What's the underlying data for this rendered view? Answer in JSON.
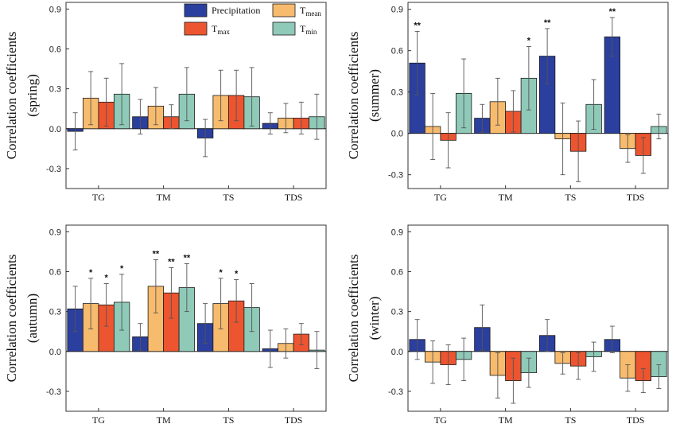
{
  "colors": {
    "Precipitation": "#2b3f9e",
    "T_mean": "#f7bb6e",
    "T_max": "#ec5530",
    "T_min": "#8fc9b8"
  },
  "legend": {
    "items": [
      {
        "key": "Precipitation",
        "base": "Precipitation",
        "sub": ""
      },
      {
        "key": "T_mean",
        "base": "T",
        "sub": "mean"
      },
      {
        "key": "T_max",
        "base": "T",
        "sub": "max"
      },
      {
        "key": "T_min",
        "base": "T",
        "sub": "min"
      }
    ]
  },
  "chart_data": [
    {
      "type": "bar",
      "ylabel_main": "Correlation coefficients",
      "ylabel_season": "(spring)",
      "ylim": [
        -0.45,
        0.95
      ],
      "yticks": [
        -0.3,
        0.0,
        0.3,
        0.6,
        0.9
      ],
      "ytick_labels": [
        "-0.3",
        "0.0",
        "0.3",
        "0.6",
        "0.9"
      ],
      "categories": [
        "TG",
        "TM",
        "TS",
        "TDS"
      ],
      "series": [
        {
          "name": "Precipitation",
          "values": [
            -0.02,
            0.09,
            -0.07,
            0.04
          ],
          "err": [
            0.14,
            0.13,
            0.14,
            0.08
          ],
          "stars": [
            "",
            "",
            "",
            ""
          ]
        },
        {
          "name": "T_mean",
          "values": [
            0.23,
            0.17,
            0.25,
            0.08
          ],
          "err": [
            0.2,
            0.14,
            0.19,
            0.11
          ],
          "stars": [
            "",
            "",
            "",
            ""
          ]
        },
        {
          "name": "T_max",
          "values": [
            0.2,
            0.09,
            0.25,
            0.08
          ],
          "err": [
            0.18,
            0.09,
            0.19,
            0.12
          ],
          "stars": [
            "",
            "",
            "",
            ""
          ]
        },
        {
          "name": "T_min",
          "values": [
            0.26,
            0.26,
            0.24,
            0.09
          ],
          "err": [
            0.23,
            0.2,
            0.22,
            0.17
          ],
          "stars": [
            "",
            "",
            "",
            ""
          ]
        }
      ]
    },
    {
      "type": "bar",
      "ylabel_main": "Correlation coefficients",
      "ylabel_season": "(summer)",
      "ylim": [
        -0.4,
        0.95
      ],
      "yticks": [
        -0.3,
        0.0,
        0.3,
        0.6,
        0.9
      ],
      "ytick_labels": [
        "-0.3",
        "0.0",
        "0.3",
        "0.6",
        "0.9"
      ],
      "categories": [
        "TG",
        "TM",
        "TS",
        "TDS"
      ],
      "series": [
        {
          "name": "Precipitation",
          "values": [
            0.51,
            0.11,
            0.56,
            0.7
          ],
          "err": [
            0.23,
            0.1,
            0.2,
            0.14
          ],
          "stars": [
            "**",
            "",
            "**",
            "**"
          ]
        },
        {
          "name": "T_mean",
          "values": [
            0.05,
            0.23,
            -0.04,
            -0.11
          ],
          "err": [
            0.24,
            0.17,
            0.26,
            0.1
          ],
          "stars": [
            "",
            "",
            "",
            ""
          ]
        },
        {
          "name": "T_max",
          "values": [
            -0.05,
            0.16,
            -0.13,
            -0.16
          ],
          "err": [
            0.2,
            0.15,
            0.22,
            0.13
          ],
          "stars": [
            "",
            "",
            "",
            ""
          ]
        },
        {
          "name": "T_min",
          "values": [
            0.29,
            0.4,
            0.21,
            0.05
          ],
          "err": [
            0.25,
            0.23,
            0.18,
            0.09
          ],
          "stars": [
            "",
            "*",
            "",
            ""
          ]
        }
      ]
    },
    {
      "type": "bar",
      "ylabel_main": "Correlation coefficients",
      "ylabel_season": "(autumn)",
      "ylim": [
        -0.45,
        0.95
      ],
      "yticks": [
        -0.3,
        0.0,
        0.3,
        0.6,
        0.9
      ],
      "ytick_labels": [
        "-0.3",
        "0.0",
        "0.3",
        "0.6",
        "0.9"
      ],
      "categories": [
        "TG",
        "TM",
        "TS",
        "TDS"
      ],
      "series": [
        {
          "name": "Precipitation",
          "values": [
            0.32,
            0.11,
            0.21,
            0.02
          ],
          "err": [
            0.17,
            0.1,
            0.15,
            0.14
          ],
          "stars": [
            "",
            "",
            "",
            ""
          ]
        },
        {
          "name": "T_mean",
          "values": [
            0.36,
            0.49,
            0.36,
            0.06
          ],
          "err": [
            0.19,
            0.2,
            0.19,
            0.11
          ],
          "stars": [
            "*",
            "**",
            "*",
            ""
          ]
        },
        {
          "name": "T_max",
          "values": [
            0.35,
            0.44,
            0.38,
            0.13
          ],
          "err": [
            0.16,
            0.19,
            0.16,
            0.08
          ],
          "stars": [
            "*",
            "**",
            "*",
            ""
          ]
        },
        {
          "name": "T_min",
          "values": [
            0.37,
            0.48,
            0.33,
            0.01
          ],
          "err": [
            0.21,
            0.18,
            0.18,
            0.14
          ],
          "stars": [
            "*",
            "**",
            "",
            ""
          ]
        }
      ]
    },
    {
      "type": "bar",
      "ylabel_main": "Correlation coefficients",
      "ylabel_season": "(winter)",
      "ylim": [
        -0.45,
        0.95
      ],
      "yticks": [
        -0.3,
        0.0,
        0.3,
        0.6,
        0.9
      ],
      "ytick_labels": [
        "-0.3",
        "0.0",
        "0.3",
        "0.6",
        "0.9"
      ],
      "categories": [
        "TG",
        "TM",
        "TS",
        "TDS"
      ],
      "series": [
        {
          "name": "Precipitation",
          "values": [
            0.09,
            0.18,
            0.12,
            0.09
          ],
          "err": [
            0.15,
            0.17,
            0.12,
            0.1
          ],
          "stars": [
            "",
            "",
            "",
            ""
          ]
        },
        {
          "name": "T_mean",
          "values": [
            -0.08,
            -0.18,
            -0.09,
            -0.2
          ],
          "err": [
            0.16,
            0.17,
            0.08,
            0.1
          ],
          "stars": [
            "",
            "",
            "",
            ""
          ]
        },
        {
          "name": "T_max",
          "values": [
            -0.1,
            -0.22,
            -0.11,
            -0.22
          ],
          "err": [
            0.15,
            0.17,
            0.1,
            0.09
          ],
          "stars": [
            "",
            "",
            "",
            ""
          ]
        },
        {
          "name": "T_min",
          "values": [
            -0.06,
            -0.16,
            -0.04,
            -0.19
          ],
          "err": [
            0.16,
            0.11,
            0.11,
            0.09
          ],
          "stars": [
            "",
            "",
            "",
            ""
          ]
        }
      ]
    }
  ]
}
